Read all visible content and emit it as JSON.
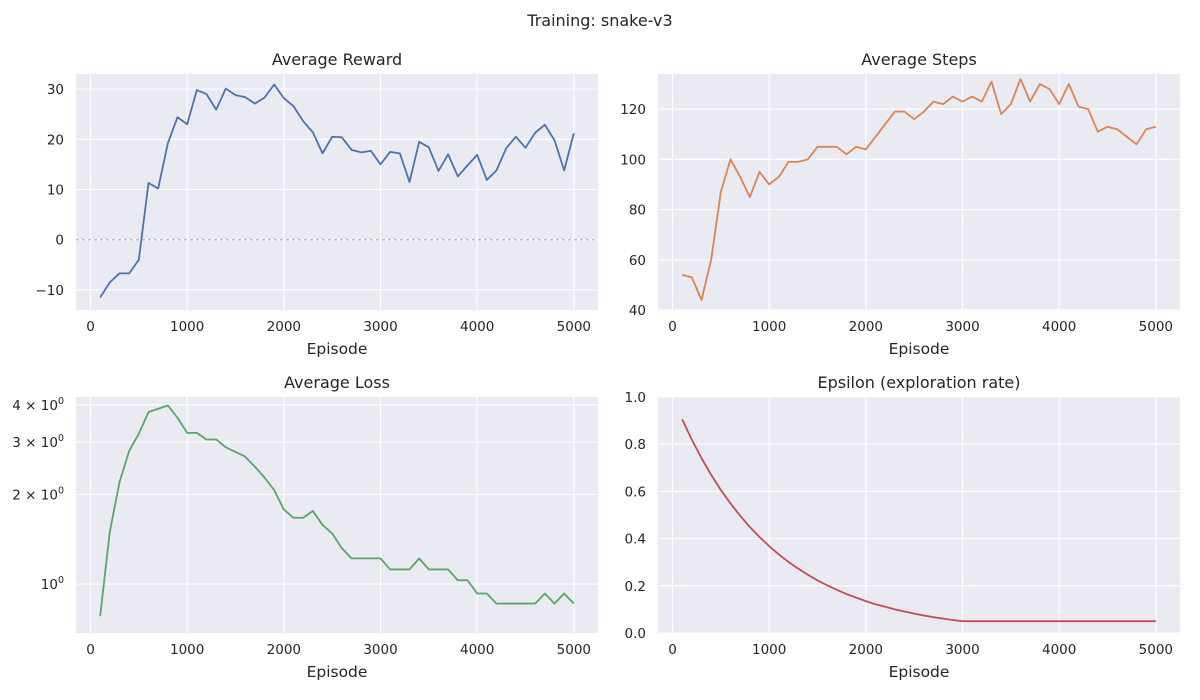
{
  "figure": {
    "suptitle": "Training: snake-v3"
  },
  "chart_data": [
    {
      "type": "line",
      "title": "Average Reward",
      "xlabel": "Episode",
      "ylabel": "",
      "color": "#4c72b0",
      "xlim": [
        -150,
        5250
      ],
      "ylim": [
        -14,
        33
      ],
      "xticks": [
        0,
        1000,
        2000,
        3000,
        4000,
        5000
      ],
      "xtick_labels": [
        "0",
        "1000",
        "2000",
        "3000",
        "4000",
        "5000"
      ],
      "yticks": [
        -10,
        0,
        10,
        20,
        30
      ],
      "ytick_labels": [
        "−10",
        "0",
        "10",
        "20",
        "30"
      ],
      "hline": {
        "y": 0,
        "style": "dashed",
        "color": "#aaaaaa"
      },
      "grid": true,
      "x": [
        100,
        200,
        300,
        400,
        500,
        600,
        700,
        800,
        900,
        1000,
        1100,
        1200,
        1300,
        1400,
        1500,
        1600,
        1700,
        1800,
        1900,
        2000,
        2100,
        2200,
        2300,
        2400,
        2500,
        2600,
        2700,
        2800,
        2900,
        3000,
        3100,
        3200,
        3300,
        3400,
        3500,
        3600,
        3700,
        3800,
        3900,
        4000,
        4100,
        4200,
        4300,
        4400,
        4500,
        4600,
        4700,
        4800,
        4900,
        5000
      ],
      "values": [
        -11.5,
        -8.5,
        -6.7,
        -6.7,
        -4,
        11.3,
        10.2,
        19.2,
        24.4,
        23,
        29.8,
        29,
        25.9,
        30.1,
        28.8,
        28.4,
        27.1,
        28.3,
        30.9,
        28.2,
        26.6,
        23.6,
        21.4,
        17.2,
        20.5,
        20.4,
        17.9,
        17.4,
        17.7,
        15,
        17.5,
        17.2,
        11.5,
        19.5,
        18.4,
        13.7,
        17,
        12.6,
        14.8,
        16.9,
        11.9,
        13.8,
        18.2,
        20.5,
        18.3,
        21.3,
        22.9,
        19.8,
        13.8,
        21.2
      ]
    },
    {
      "type": "line",
      "title": "Average Steps",
      "xlabel": "Episode",
      "ylabel": "",
      "color": "#dd8452",
      "xlim": [
        -150,
        5250
      ],
      "ylim": [
        40,
        134
      ],
      "xticks": [
        0,
        1000,
        2000,
        3000,
        4000,
        5000
      ],
      "xtick_labels": [
        "0",
        "1000",
        "2000",
        "3000",
        "4000",
        "5000"
      ],
      "yticks": [
        40,
        60,
        80,
        100,
        120
      ],
      "ytick_labels": [
        "40",
        "60",
        "80",
        "100",
        "120"
      ],
      "grid": true,
      "x": [
        100,
        200,
        300,
        400,
        500,
        600,
        700,
        800,
        900,
        1000,
        1100,
        1200,
        1300,
        1400,
        1500,
        1600,
        1700,
        1800,
        1900,
        2000,
        2100,
        2200,
        2300,
        2400,
        2500,
        2600,
        2700,
        2800,
        2900,
        3000,
        3100,
        3200,
        3300,
        3400,
        3500,
        3600,
        3700,
        3800,
        3900,
        4000,
        4100,
        4200,
        4300,
        4400,
        4500,
        4600,
        4700,
        4800,
        4900,
        5000
      ],
      "values": [
        54,
        53,
        44,
        60,
        87,
        100,
        93,
        85,
        95,
        90,
        93,
        99,
        99,
        100,
        105,
        105,
        105,
        102,
        105,
        104,
        109,
        114,
        119,
        119,
        116,
        119,
        123,
        122,
        125,
        123,
        125,
        123,
        131,
        118,
        122,
        132,
        123,
        130,
        128,
        122,
        130,
        121,
        120,
        111,
        113,
        112,
        109,
        106,
        112,
        113
      ]
    },
    {
      "type": "line",
      "title": "Average Loss",
      "xlabel": "Episode",
      "ylabel": "",
      "color": "#55a868",
      "yscale": "log",
      "xlim": [
        -150,
        5250
      ],
      "ylim": [
        0.685,
        4.25
      ],
      "xticks": [
        0,
        1000,
        2000,
        3000,
        4000,
        5000
      ],
      "xtick_labels": [
        "0",
        "1000",
        "2000",
        "3000",
        "4000",
        "5000"
      ],
      "yticks": [
        1,
        2,
        3,
        4
      ],
      "ytick_labels": [
        {
          "base": "10",
          "exp": "0"
        },
        {
          "base": "2 × 10",
          "exp": "0"
        },
        {
          "base": "3 × 10",
          "exp": "0"
        },
        {
          "base": "4 × 10",
          "exp": "0"
        }
      ],
      "grid": true,
      "x": [
        100,
        200,
        300,
        400,
        500,
        600,
        700,
        800,
        900,
        1000,
        1100,
        1200,
        1300,
        1400,
        1500,
        1600,
        1700,
        1800,
        1900,
        2000,
        2100,
        2200,
        2300,
        2400,
        2500,
        2600,
        2700,
        2800,
        2900,
        3000,
        3100,
        3200,
        3300,
        3400,
        3500,
        3600,
        3700,
        3800,
        3900,
        4000,
        4100,
        4200,
        4300,
        4400,
        4500,
        4600,
        4700,
        4800,
        4900,
        5000
      ],
      "values": [
        0.78,
        1.5,
        2.2,
        2.8,
        3.2,
        3.78,
        3.88,
        3.98,
        3.62,
        3.22,
        3.22,
        3.06,
        3.06,
        2.88,
        2.78,
        2.68,
        2.48,
        2.28,
        2.07,
        1.78,
        1.67,
        1.67,
        1.76,
        1.58,
        1.48,
        1.32,
        1.22,
        1.22,
        1.22,
        1.22,
        1.12,
        1.12,
        1.12,
        1.22,
        1.12,
        1.12,
        1.12,
        1.03,
        1.03,
        0.93,
        0.93,
        0.86,
        0.86,
        0.86,
        0.86,
        0.86,
        0.93,
        0.86,
        0.93,
        0.86
      ]
    },
    {
      "type": "line",
      "title": "Epsilon (exploration rate)",
      "xlabel": "Episode",
      "ylabel": "",
      "color": "#c44e52",
      "xlim": [
        -150,
        5250
      ],
      "ylim": [
        0,
        1
      ],
      "xticks": [
        0,
        1000,
        2000,
        3000,
        4000,
        5000
      ],
      "xtick_labels": [
        "0",
        "1000",
        "2000",
        "3000",
        "4000",
        "5000"
      ],
      "yticks": [
        0,
        0.2,
        0.4,
        0.6,
        0.8,
        1
      ],
      "ytick_labels": [
        "0.0",
        "0.2",
        "0.4",
        "0.6",
        "0.8",
        "1.0"
      ],
      "grid": true,
      "x": [
        100,
        200,
        300,
        400,
        500,
        600,
        700,
        800,
        900,
        1000,
        1100,
        1200,
        1300,
        1400,
        1500,
        1600,
        1700,
        1800,
        1900,
        2000,
        2100,
        2200,
        2300,
        2400,
        2500,
        2600,
        2700,
        2800,
        2900,
        3000,
        3100,
        3200,
        3300,
        3400,
        3500,
        3600,
        3700,
        3800,
        3900,
        4000,
        4100,
        4200,
        4300,
        4400,
        4500,
        4600,
        4700,
        4800,
        4900,
        5000
      ],
      "values": [
        0.905,
        0.819,
        0.741,
        0.67,
        0.606,
        0.549,
        0.497,
        0.449,
        0.407,
        0.368,
        0.333,
        0.301,
        0.273,
        0.247,
        0.223,
        0.202,
        0.183,
        0.165,
        0.15,
        0.135,
        0.122,
        0.111,
        0.1,
        0.091,
        0.082,
        0.074,
        0.067,
        0.061,
        0.055,
        0.05,
        0.05,
        0.05,
        0.05,
        0.05,
        0.05,
        0.05,
        0.05,
        0.05,
        0.05,
        0.05,
        0.05,
        0.05,
        0.05,
        0.05,
        0.05,
        0.05,
        0.05,
        0.05,
        0.05,
        0.05
      ]
    }
  ]
}
